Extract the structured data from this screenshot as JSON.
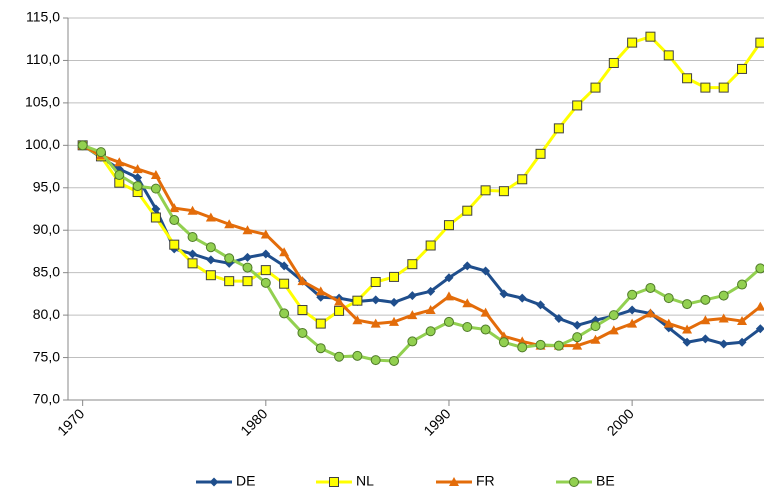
{
  "chart_data": {
    "type": "line",
    "x": [
      1970,
      1971,
      1972,
      1973,
      1974,
      1975,
      1976,
      1977,
      1978,
      1979,
      1980,
      1981,
      1982,
      1983,
      1984,
      1985,
      1986,
      1987,
      1988,
      1989,
      1990,
      1991,
      1992,
      1993,
      1994,
      1995,
      1996,
      1997,
      1998,
      1999,
      2000,
      2001,
      2002,
      2003,
      2004,
      2005,
      2006,
      2007
    ],
    "xlim": [
      1969.2,
      2007.2
    ],
    "xticks": [
      1970,
      1980,
      1990,
      2000
    ],
    "ylim": [
      70,
      115
    ],
    "yticks": [
      {
        "value": 70,
        "label": "70,0"
      },
      {
        "value": 75,
        "label": "75,0"
      },
      {
        "value": 80,
        "label": "80,0"
      },
      {
        "value": 85,
        "label": "85,0"
      },
      {
        "value": 90,
        "label": "90,0"
      },
      {
        "value": 95,
        "label": "95,0"
      },
      {
        "value": 100,
        "label": "100,0"
      },
      {
        "value": 105,
        "label": "105,0"
      },
      {
        "value": 110,
        "label": "110,0"
      },
      {
        "value": 115,
        "label": "115,0"
      }
    ],
    "grid": true,
    "legend": "bottom",
    "series": [
      {
        "name": "DE",
        "color": "#1f4e8c",
        "marker": "diamond",
        "values": [
          100,
          98.6,
          97.2,
          96.2,
          92.5,
          87.8,
          87.2,
          86.5,
          86.1,
          86.8,
          87.2,
          85.8,
          84.0,
          82.1,
          82.0,
          81.6,
          81.8,
          81.5,
          82.3,
          82.8,
          84.4,
          85.8,
          85.2,
          82.5,
          82.0,
          81.2,
          79.6,
          78.8,
          79.4,
          79.9,
          80.6,
          80.2,
          78.5,
          76.8,
          77.2,
          76.6,
          76.8,
          78.4
        ]
      },
      {
        "name": "NL",
        "color": "#ffff00",
        "marker": "square",
        "values": [
          100,
          98.7,
          95.6,
          94.5,
          91.5,
          88.3,
          86.1,
          84.7,
          84.0,
          84.0,
          85.3,
          83.7,
          80.6,
          79.0,
          80.5,
          81.7,
          83.9,
          84.5,
          86.0,
          88.2,
          90.6,
          92.3,
          94.7,
          94.6,
          96.0,
          99.0,
          102.0,
          104.7,
          106.8,
          109.7,
          112.1,
          112.8,
          110.6,
          107.9,
          106.8,
          106.8,
          109.0,
          112.1
        ]
      },
      {
        "name": "FR",
        "color": "#e36c0a",
        "marker": "triangle",
        "values": [
          100,
          98.8,
          98.0,
          97.2,
          96.5,
          92.6,
          92.3,
          91.5,
          90.7,
          90.0,
          89.5,
          87.4,
          84.0,
          82.8,
          81.6,
          79.4,
          79.0,
          79.2,
          80.0,
          80.6,
          82.2,
          81.4,
          80.3,
          77.5,
          76.9,
          76.4,
          76.4,
          76.4,
          77.1,
          78.2,
          79.0,
          80.2,
          79.0,
          78.3,
          79.4,
          79.6,
          79.3,
          81.0
        ]
      },
      {
        "name": "BE",
        "color": "#92d050",
        "marker": "circle",
        "values": [
          100,
          99.2,
          96.5,
          95.2,
          94.9,
          91.2,
          89.2,
          88.0,
          86.7,
          85.6,
          83.8,
          80.2,
          77.9,
          76.1,
          75.1,
          75.2,
          74.7,
          74.6,
          76.9,
          78.1,
          79.2,
          78.6,
          78.3,
          76.8,
          76.2,
          76.5,
          76.4,
          77.4,
          78.7,
          80.0,
          82.4,
          83.2,
          82.0,
          81.3,
          81.8,
          82.3,
          83.6,
          85.5
        ]
      }
    ]
  }
}
